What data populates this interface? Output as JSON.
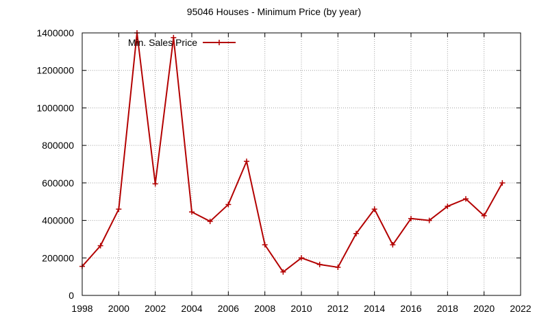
{
  "chart_data": {
    "type": "line",
    "title": "95046 Houses - Minimum Price (by year)",
    "xlabel": "",
    "ylabel": "",
    "xlim": [
      1998,
      2022
    ],
    "ylim": [
      0,
      1400000
    ],
    "x_ticks": [
      1998,
      2000,
      2002,
      2004,
      2006,
      2008,
      2010,
      2012,
      2014,
      2016,
      2018,
      2020,
      2022
    ],
    "y_ticks": [
      0,
      200000,
      400000,
      600000,
      800000,
      1000000,
      1200000,
      1400000
    ],
    "x_tick_labels": [
      "1998",
      "2000",
      "2002",
      "2004",
      "2006",
      "2008",
      "2010",
      "2012",
      "2014",
      "2016",
      "2018",
      "2020",
      "2022"
    ],
    "y_tick_labels": [
      "0",
      "200000",
      "400000",
      "600000",
      "800000",
      "1000000",
      "1200000",
      "1400000"
    ],
    "grid": true,
    "legend_position": "top-left",
    "series": [
      {
        "name": "Min. Sales Price",
        "color": "#b30000",
        "marker": "plus",
        "x": [
          1998,
          1999,
          2000,
          2001,
          2002,
          2003,
          2004,
          2005,
          2006,
          2007,
          2008,
          2009,
          2010,
          2011,
          2012,
          2013,
          2014,
          2015,
          2016,
          2017,
          2018,
          2019,
          2020,
          2021
        ],
        "y": [
          155000,
          265000,
          460000,
          1400000,
          595000,
          1375000,
          445000,
          395000,
          485000,
          715000,
          270000,
          125000,
          200000,
          165000,
          150000,
          330000,
          460000,
          270000,
          410000,
          400000,
          475000,
          515000,
          425000,
          600000
        ]
      }
    ]
  }
}
